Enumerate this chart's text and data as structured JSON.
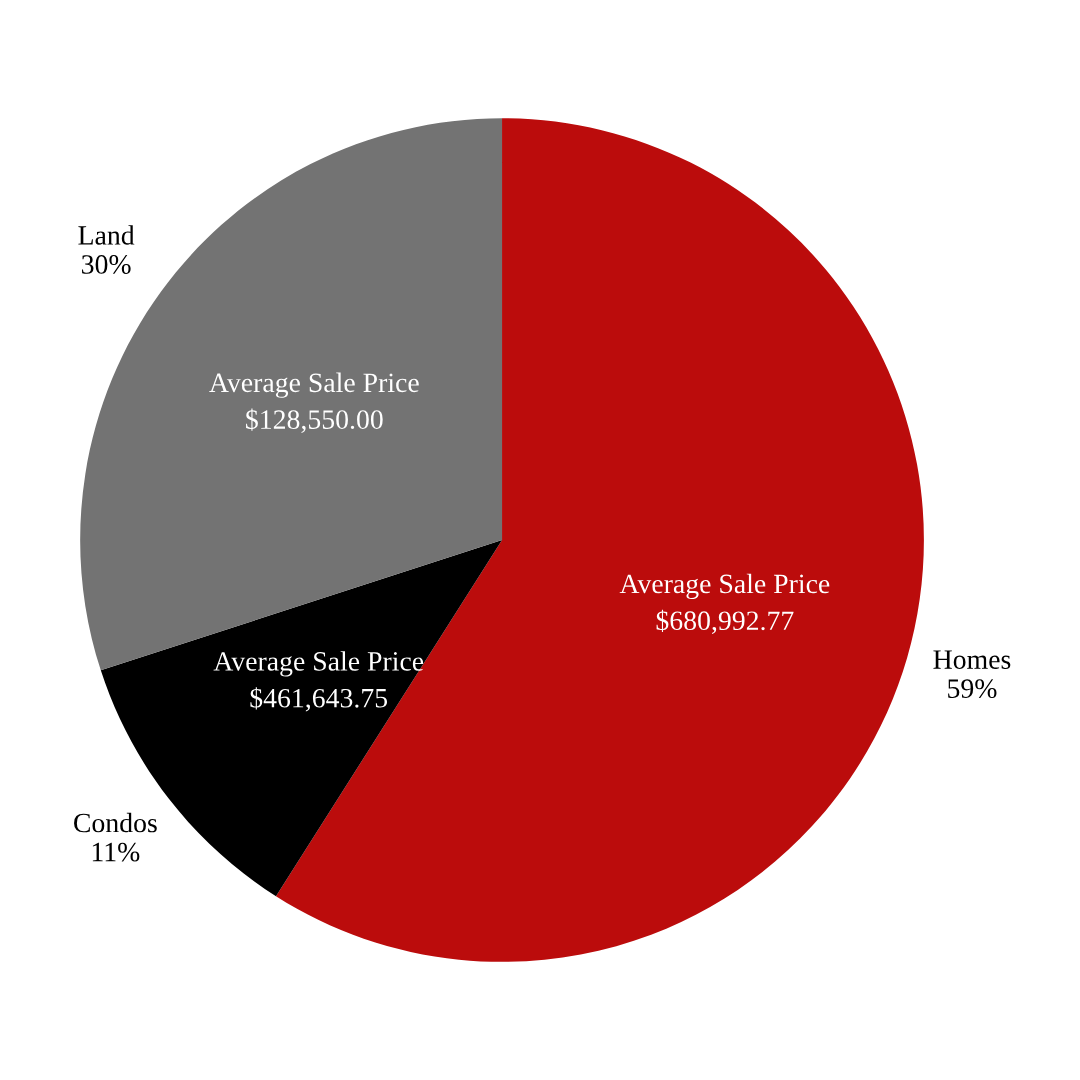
{
  "chart_data": {
    "type": "pie",
    "categories": [
      "Homes",
      "Condos",
      "Land"
    ],
    "values": [
      59,
      11,
      30
    ],
    "value_labels": [
      "59%",
      "11%",
      "30%"
    ],
    "colors": [
      "#bb0c0c",
      "#000000",
      "#737373"
    ],
    "annotations": [
      {
        "text": "Average Sale Price\n$680,992.77",
        "x": "Homes"
      },
      {
        "text": "Average Sale Price\n$461,643.75",
        "x": "Condos"
      },
      {
        "text": "Average Sale Price\n$128,550.00",
        "x": "Land"
      }
    ]
  }
}
